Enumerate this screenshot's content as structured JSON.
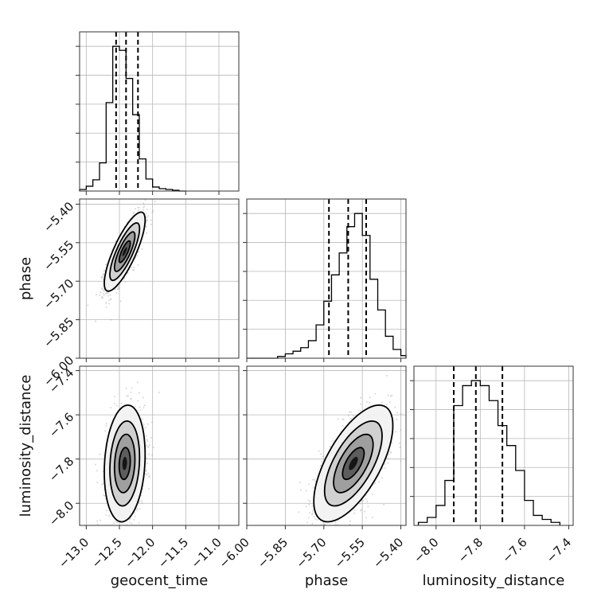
{
  "chart_data": {
    "type": "corner",
    "parameters": [
      "geocent_time",
      "phase",
      "luminosity_distance"
    ],
    "axes": {
      "geocent_time": {
        "range": [
          -13.1,
          -10.7
        ],
        "ticks": [
          -13.0,
          -12.5,
          -12.0,
          -11.5,
          -11.0
        ],
        "tick_labels": [
          "−13.0",
          "−12.5",
          "−12.0",
          "−11.5",
          "−11.0"
        ],
        "quantiles": [
          -12.55,
          -12.4,
          -12.22
        ]
      },
      "phase": {
        "range": [
          -6.0,
          -5.38
        ],
        "ticks": [
          -6.0,
          -5.85,
          -5.7,
          -5.55,
          -5.4
        ],
        "tick_labels": [
          "−6.00",
          "−5.85",
          "−5.70",
          "−5.55",
          "−5.40"
        ],
        "quantiles": [
          -5.68,
          -5.605,
          -5.535
        ]
      },
      "luminosity_distance": {
        "range": [
          -8.1,
          -7.38
        ],
        "ticks": [
          -8.0,
          -7.8,
          -7.6,
          -7.4
        ],
        "tick_labels": [
          "−8.0",
          "−7.8",
          "−7.6",
          "−7.4"
        ],
        "quantiles": [
          -7.92,
          -7.82,
          -7.7
        ]
      }
    },
    "histograms": {
      "geocent_time": {
        "bin_edges": [
          -13.1,
          -13.0,
          -12.9,
          -12.8,
          -12.7,
          -12.6,
          -12.5,
          -12.4,
          -12.3,
          -12.2,
          -12.1,
          -12.0,
          -11.9,
          -11.8,
          -11.7,
          -11.6,
          -11.5
        ],
        "counts": [
          2,
          6,
          14,
          35,
          110,
          180,
          175,
          140,
          95,
          40,
          15,
          5,
          3,
          2,
          1,
          0
        ]
      },
      "phase": {
        "bin_edges": [
          -6.0,
          -5.97,
          -5.94,
          -5.91,
          -5.88,
          -5.85,
          -5.82,
          -5.79,
          -5.76,
          -5.73,
          -5.7,
          -5.67,
          -5.64,
          -5.61,
          -5.58,
          -5.55,
          -5.52,
          -5.49,
          -5.46,
          -5.43,
          -5.4,
          -5.38
        ],
        "counts": [
          0,
          0,
          0,
          0,
          2,
          5,
          8,
          12,
          20,
          38,
          65,
          95,
          120,
          150,
          165,
          140,
          90,
          55,
          25,
          10,
          3
        ]
      },
      "luminosity_distance": {
        "bin_edges": [
          -8.08,
          -8.04,
          -8.0,
          -7.96,
          -7.92,
          -7.88,
          -7.84,
          -7.8,
          -7.76,
          -7.72,
          -7.68,
          -7.64,
          -7.6,
          -7.56,
          -7.52,
          -7.48,
          -7.44
        ],
        "counts": [
          3,
          8,
          20,
          45,
          120,
          140,
          145,
          140,
          125,
          100,
          80,
          55,
          25,
          10,
          6,
          3
        ]
      }
    },
    "scatter_2d": [
      {
        "x": "geocent_time",
        "y": "phase",
        "center": [
          -12.42,
          -5.585
        ],
        "spread": [
          0.14,
          0.07
        ],
        "correlation": 0.8
      },
      {
        "x": "geocent_time",
        "y": "luminosity_distance",
        "center": [
          -12.42,
          -7.82
        ],
        "spread": [
          0.14,
          0.12
        ],
        "correlation": 0.15
      },
      {
        "x": "phase",
        "y": "luminosity_distance",
        "center": [
          -5.585,
          -7.82
        ],
        "spread": [
          0.07,
          0.12
        ],
        "correlation": 0.65
      }
    ],
    "xlabel": [
      "geocent_time",
      "phase",
      "luminosity_distance"
    ],
    "ylabel": [
      "",
      "phase",
      "luminosity_distance"
    ],
    "grid": true,
    "legend": "none"
  }
}
